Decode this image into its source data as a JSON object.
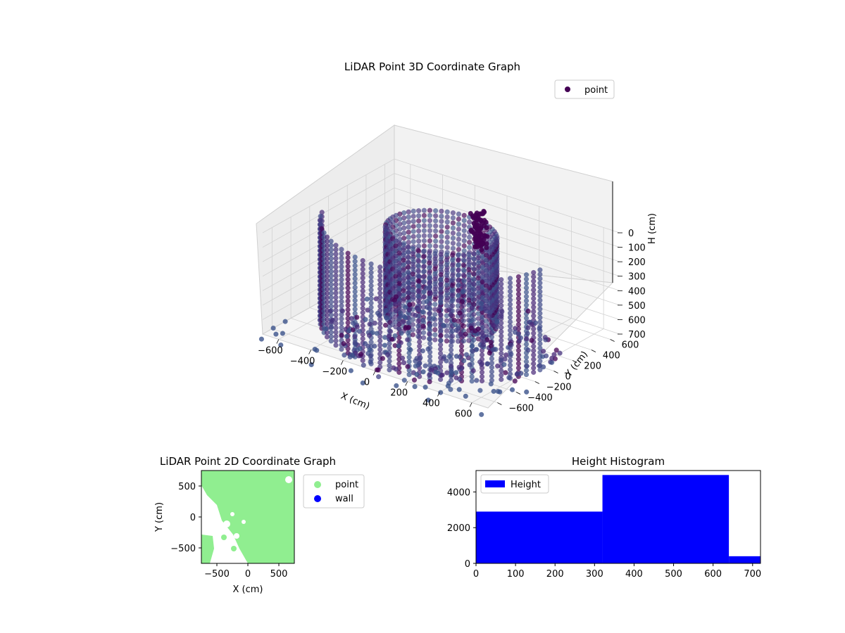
{
  "chart_data": [
    {
      "type": "scatter3d",
      "title": "LiDAR Point 3D Coordinate Graph",
      "xlabel": "X (cm)",
      "ylabel": "Y (cm)",
      "zlabel": "H (cm)",
      "x_ticks": [
        -600,
        -400,
        -200,
        0,
        200,
        400,
        600
      ],
      "y_ticks": [
        -600,
        -400,
        -200,
        0,
        200,
        400,
        600
      ],
      "z_ticks": [
        0,
        100,
        200,
        300,
        400,
        500,
        600,
        700
      ],
      "xlim": [
        -700,
        700
      ],
      "ylim": [
        -700,
        700
      ],
      "zlim": [
        0,
        700
      ],
      "z_inverted": true,
      "grid": true,
      "legend": {
        "placement": "top-right",
        "entries": [
          {
            "name": "point",
            "color": "#440154"
          }
        ]
      },
      "colormap": "viridis",
      "marker_color": "#440154",
      "structures": {
        "outer_arc": {
          "radius": 650,
          "start_deg": 200,
          "end_deg": 355,
          "height_range": [
            0,
            700
          ]
        },
        "inner_ring": {
          "radius": 300,
          "height_range": [
            0,
            600
          ]
        },
        "tower": {
          "x": 0,
          "y": 400,
          "height_range": [
            0,
            250
          ]
        }
      }
    },
    {
      "type": "scatter",
      "title": "LiDAR Point 2D Coordinate Graph",
      "xlabel": "X (cm)",
      "ylabel": "Y (cm)",
      "x_ticks": [
        -500,
        0,
        500
      ],
      "y_ticks": [
        -500,
        0,
        500
      ],
      "xlim": [
        -750,
        750
      ],
      "ylim": [
        -750,
        750
      ],
      "legend": {
        "placement": "outside-right",
        "entries": [
          {
            "name": "point",
            "color": "#90ee90"
          },
          {
            "name": "wall",
            "color": "#0000ff"
          }
        ]
      }
    },
    {
      "type": "bar",
      "title": "Height Histogram",
      "legend": {
        "placement": "top-left",
        "entries": [
          {
            "name": "Height",
            "color": "#0000ff"
          }
        ]
      },
      "bins": [
        {
          "start": 0,
          "end": 320,
          "count": 2900
        },
        {
          "start": 320,
          "end": 640,
          "count": 4950
        },
        {
          "start": 640,
          "end": 720,
          "count": 400
        }
      ],
      "x_ticks": [
        0,
        100,
        200,
        300,
        400,
        500,
        600,
        700
      ],
      "y_ticks": [
        0,
        2000,
        4000
      ],
      "xlim": [
        0,
        720
      ],
      "ylim": [
        0,
        5200
      ],
      "bar_color": "#0000ff"
    }
  ]
}
